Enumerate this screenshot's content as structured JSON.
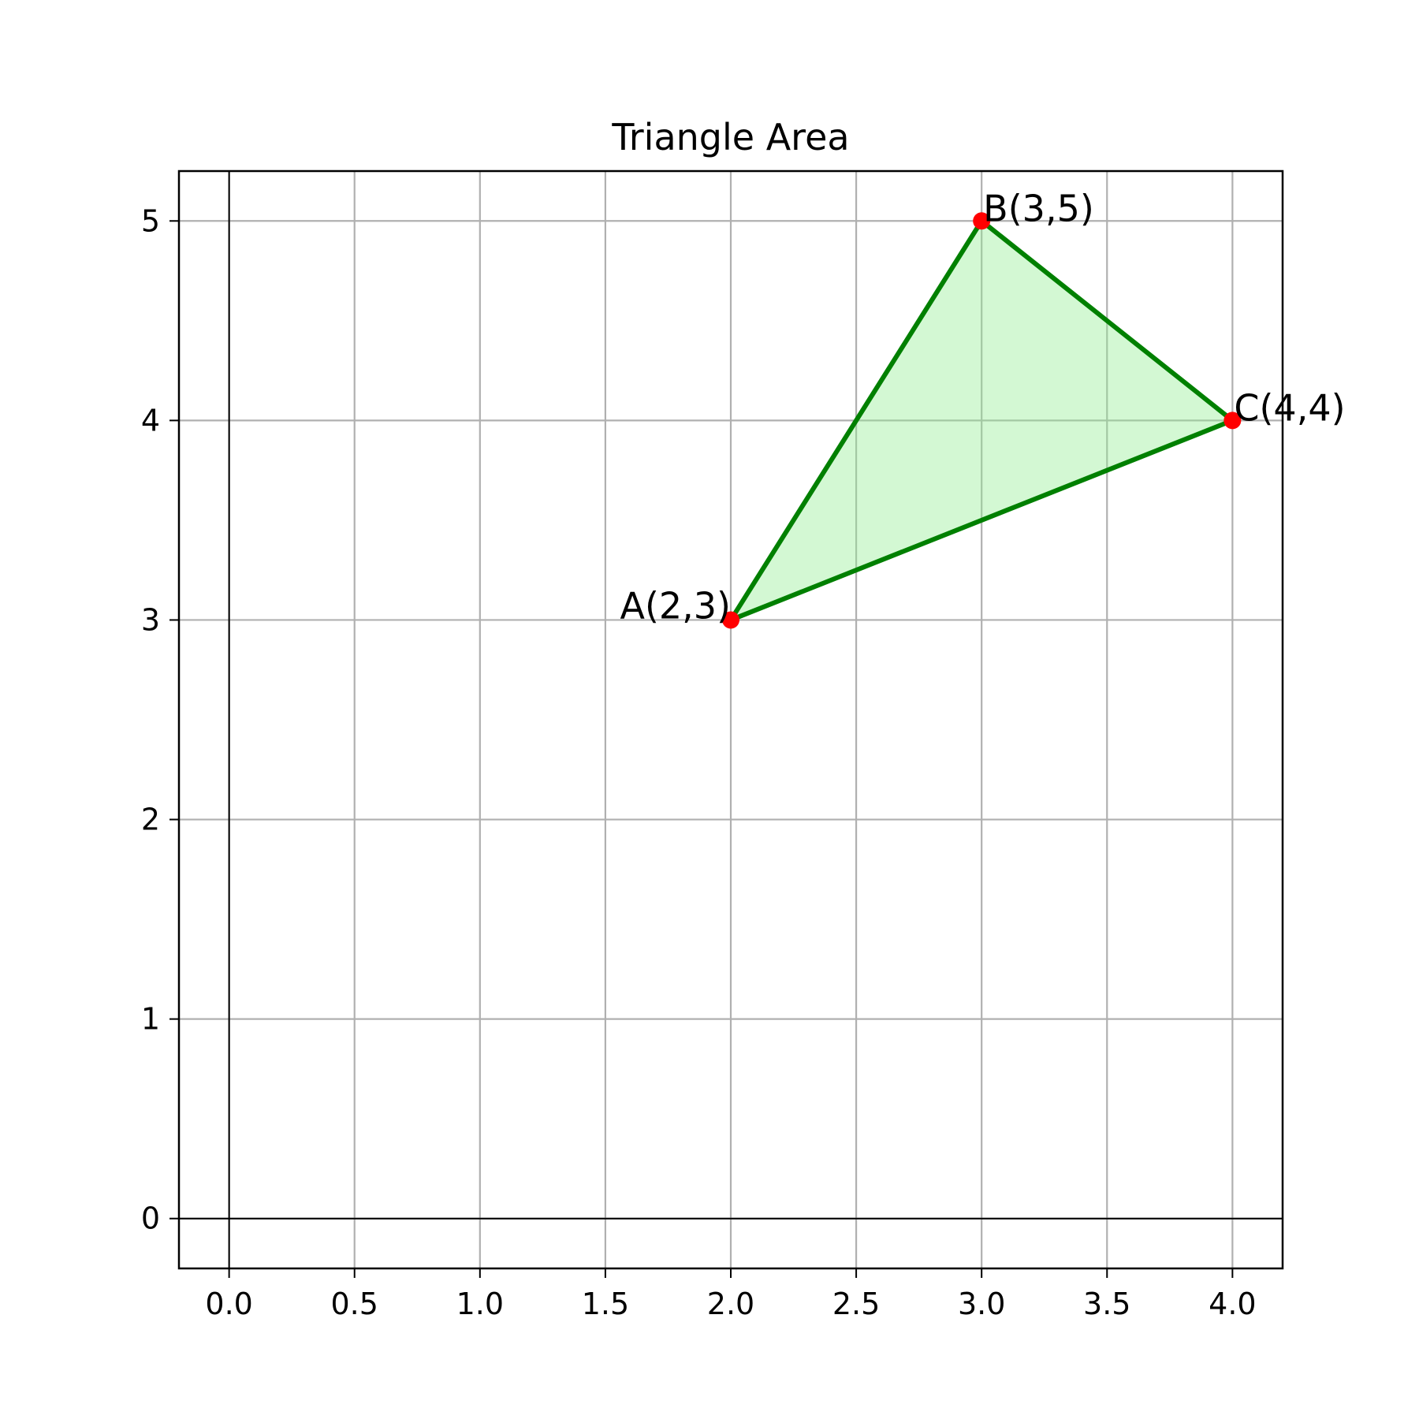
{
  "chart_data": {
    "type": "line",
    "title": "Triangle Area",
    "xlabel": "",
    "ylabel": "",
    "xlim": [
      -0.2,
      4.2
    ],
    "ylim": [
      -0.25,
      5.25
    ],
    "x_ticks": [
      0.0,
      0.5,
      1.0,
      1.5,
      2.0,
      2.5,
      3.0,
      3.5,
      4.0
    ],
    "x_tick_labels": [
      "0.0",
      "0.5",
      "1.0",
      "1.5",
      "2.0",
      "2.5",
      "3.0",
      "3.5",
      "4.0"
    ],
    "y_ticks": [
      0,
      1,
      2,
      3,
      4,
      5
    ],
    "y_tick_labels": [
      "0",
      "1",
      "2",
      "3",
      "4",
      "5"
    ],
    "grid": true,
    "points": [
      {
        "label": "A(2,3)",
        "x": 2,
        "y": 3
      },
      {
        "label": "B(3,5)",
        "x": 3,
        "y": 5
      },
      {
        "label": "C(4,4)",
        "x": 4,
        "y": 4
      }
    ],
    "colors": {
      "edge": "#008000",
      "fill": "#90ee90",
      "vertex": "#ff0000",
      "grid": "#b0b0b0",
      "axis_line": "#000000"
    }
  }
}
